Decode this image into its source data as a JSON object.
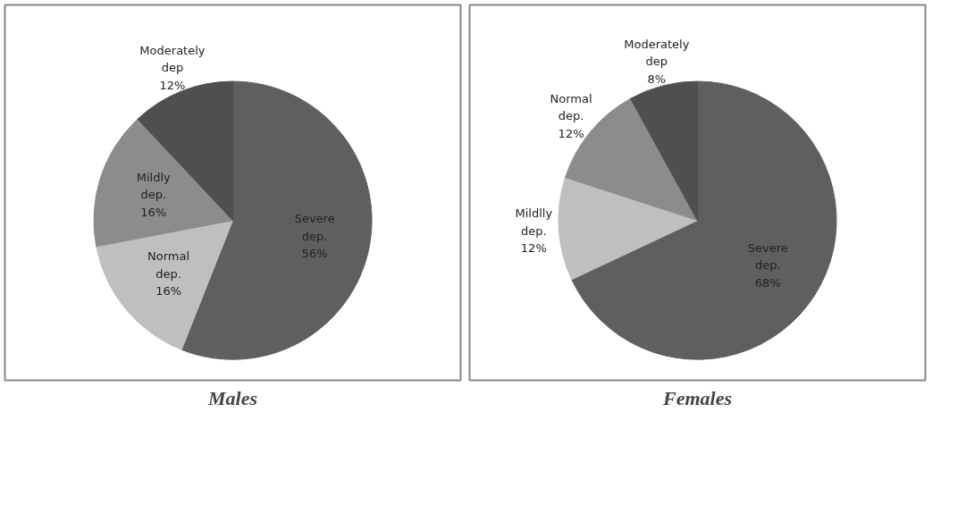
{
  "chart_data": [
    {
      "type": "pie",
      "title": "Males",
      "categories": [
        "Severe dep.",
        "Normal dep.",
        "Mildly dep.",
        "Moderately dep"
      ],
      "values": [
        56,
        16,
        16,
        12
      ],
      "value_labels": [
        "56%",
        "16%",
        "16%",
        "12%"
      ],
      "colors": [
        "#5f5f5f",
        "#bfbfbf",
        "#8c8c8c",
        "#4f4f4f"
      ]
    },
    {
      "type": "pie",
      "title": "Females",
      "categories": [
        "Severe dep.",
        "Mildlly dep.",
        "Normal dep.",
        "Moderately dep"
      ],
      "values": [
        68,
        12,
        12,
        8
      ],
      "value_labels": [
        "68%",
        "12%",
        "12%",
        "8%"
      ],
      "colors": [
        "#5f5f5f",
        "#bfbfbf",
        "#8c8c8c",
        "#4f4f4f"
      ]
    }
  ]
}
